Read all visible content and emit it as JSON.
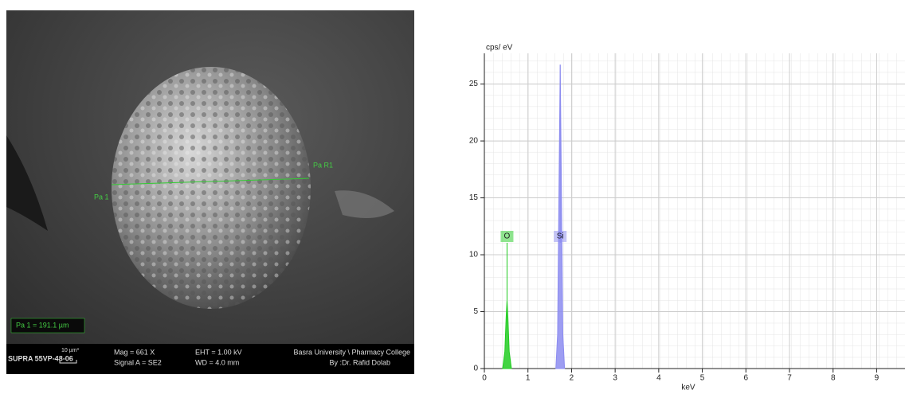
{
  "image": {
    "marker_right": "Pa R1",
    "marker_left": "Pa 1",
    "measurement": "Pa 1 = 191.1 µm",
    "instrument": "SUPRA 55VP-48-06",
    "scale": "10 µm*",
    "mag": "Mag =  661 X",
    "signal": "Signal A = SE2",
    "eht": "EHT =  1.00 kV",
    "wd": "WD =  4.0 mm",
    "institution": "Basra University \\ Pharmacy College",
    "author": "By :Dr. Rafid Dolab"
  },
  "chart_data": {
    "type": "area",
    "y_label": "cps/ eV",
    "x_label": "keV",
    "xlim": [
      0,
      9.65
    ],
    "xticks": [
      0,
      1,
      2,
      3,
      4,
      5,
      6,
      7,
      8,
      9
    ],
    "ylim": [
      0,
      27.7
    ],
    "yticks": [
      0,
      5,
      10,
      15,
      20,
      25
    ],
    "grid": true,
    "series": [
      {
        "name": "O",
        "color": "#22cc22",
        "x": [
          0.42,
          0.47,
          0.5,
          0.52,
          0.54,
          0.57,
          0.62
        ],
        "values": [
          0,
          1.5,
          4.5,
          6,
          4.5,
          1.5,
          0
        ]
      },
      {
        "name": "Si",
        "color": "#8c8cf0",
        "x": [
          1.64,
          1.68,
          1.71,
          1.74,
          1.77,
          1.8,
          1.84
        ],
        "values": [
          0,
          3,
          15,
          26.7,
          15,
          3,
          0
        ]
      }
    ]
  }
}
